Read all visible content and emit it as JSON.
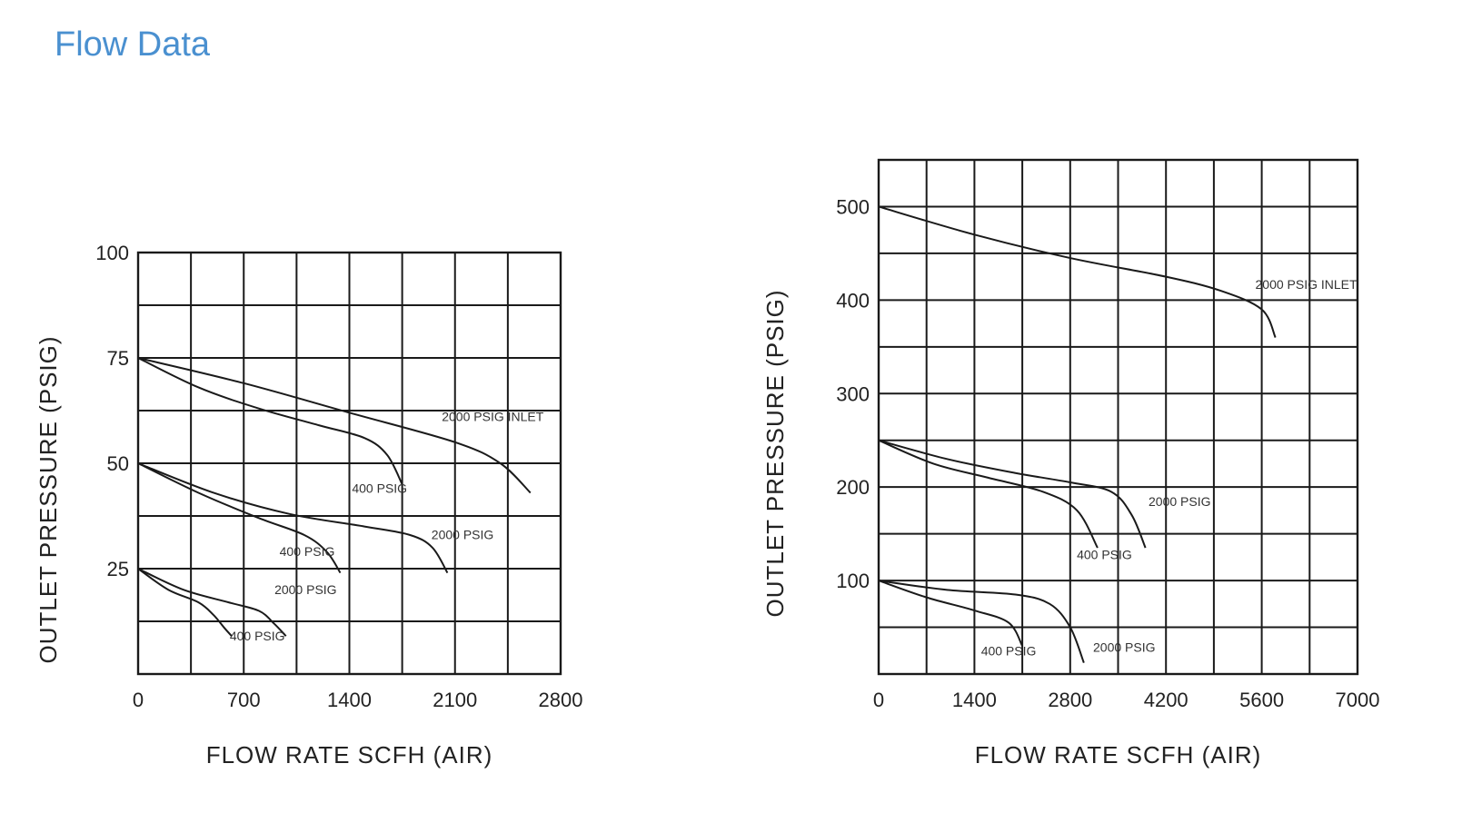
{
  "page": {
    "title": "Flow Data",
    "title_color": "#4a90d0"
  },
  "chart_data": [
    {
      "type": "line",
      "xlabel": "FLOW  RATE  SCFH (AIR)",
      "ylabel": "OUTLET  PRESSURE (PSIG)",
      "xlim": [
        0,
        2800
      ],
      "ylim": [
        0,
        100
      ],
      "x_ticks": [
        "0",
        "700",
        "1400",
        "2100",
        "2800"
      ],
      "x_tick_values": [
        0,
        700,
        1400,
        2100,
        2800
      ],
      "y_ticks": [
        "25",
        "50",
        "75",
        "100"
      ],
      "y_tick_values": [
        25,
        50,
        75,
        100
      ],
      "grid": true,
      "x_grid_step": 350,
      "y_grid_step": 12.5,
      "series": [
        {
          "name": "2000  PSIG  INLET",
          "x": [
            0,
            700,
            1400,
            2100,
            2400,
            2600
          ],
          "y": [
            75,
            69,
            62,
            55,
            50,
            43
          ],
          "label_at": [
            2350,
            60
          ]
        },
        {
          "name": "400  PSIG",
          "x": [
            0,
            400,
            800,
            1200,
            1500,
            1650,
            1750
          ],
          "y": [
            75,
            68,
            63,
            59,
            56,
            52,
            45
          ],
          "label_at": [
            1600,
            43
          ]
        },
        {
          "name": "2000  PSIG",
          "x": [
            0,
            500,
            1000,
            1500,
            1800,
            1950,
            2050
          ],
          "y": [
            50,
            43,
            38,
            35,
            33,
            30,
            24
          ],
          "label_at": [
            2150,
            32
          ]
        },
        {
          "name": "400  PSIG",
          "x": [
            0,
            400,
            800,
            1100,
            1250,
            1340
          ],
          "y": [
            50,
            43,
            37,
            33,
            29,
            24
          ],
          "label_at": [
            1120,
            28
          ]
        },
        {
          "name": "2000  PSIG",
          "x": [
            0,
            300,
            600,
            800,
            900,
            980
          ],
          "y": [
            25,
            20,
            17,
            15,
            12,
            9
          ],
          "label_at": [
            1110,
            19
          ]
        },
        {
          "name": "400  PSIG",
          "x": [
            0,
            200,
            400,
            500,
            570,
            620
          ],
          "y": [
            25,
            20,
            17,
            14,
            11,
            9
          ],
          "label_at": [
            790,
            8
          ]
        }
      ]
    },
    {
      "type": "line",
      "xlabel": "FLOW  RATE  SCFH (AIR)",
      "ylabel": "OUTLET  PRESSURE (PSIG)",
      "xlim": [
        0,
        7000
      ],
      "ylim": [
        0,
        550
      ],
      "x_ticks": [
        "0",
        "1400",
        "2800",
        "4200",
        "5600",
        "7000"
      ],
      "x_tick_values": [
        0,
        1400,
        2800,
        4200,
        5600,
        7000
      ],
      "y_ticks": [
        "100",
        "200",
        "300",
        "400",
        "500"
      ],
      "y_tick_values": [
        100,
        200,
        300,
        400,
        500
      ],
      "grid": true,
      "x_grid_step": 700,
      "y_grid_step": 50,
      "series": [
        {
          "name": "2000  PSIG  INLET",
          "x": [
            0,
            1400,
            2800,
            4200,
            5000,
            5600,
            5800
          ],
          "y": [
            500,
            470,
            445,
            425,
            410,
            390,
            360
          ],
          "label_at": [
            6250,
            412
          ]
        },
        {
          "name": "2000  PSIG",
          "x": [
            0,
            1000,
            2000,
            2800,
            3400,
            3700,
            3900
          ],
          "y": [
            250,
            230,
            215,
            205,
            195,
            170,
            135
          ],
          "label_at": [
            4400,
            180
          ]
        },
        {
          "name": "400  PSIG",
          "x": [
            0,
            800,
            1600,
            2400,
            2900,
            3200
          ],
          "y": [
            250,
            225,
            210,
            195,
            175,
            135
          ],
          "label_at": [
            3300,
            123
          ]
        },
        {
          "name": "2000  PSIG",
          "x": [
            0,
            1000,
            2000,
            2500,
            2800,
            3000
          ],
          "y": [
            100,
            90,
            85,
            75,
            50,
            12
          ],
          "label_at": [
            3590,
            24
          ]
        },
        {
          "name": "400  PSIG",
          "x": [
            0,
            700,
            1400,
            1900,
            2100
          ],
          "y": [
            100,
            82,
            68,
            55,
            30
          ],
          "label_at": [
            1900,
            20
          ]
        }
      ]
    }
  ]
}
